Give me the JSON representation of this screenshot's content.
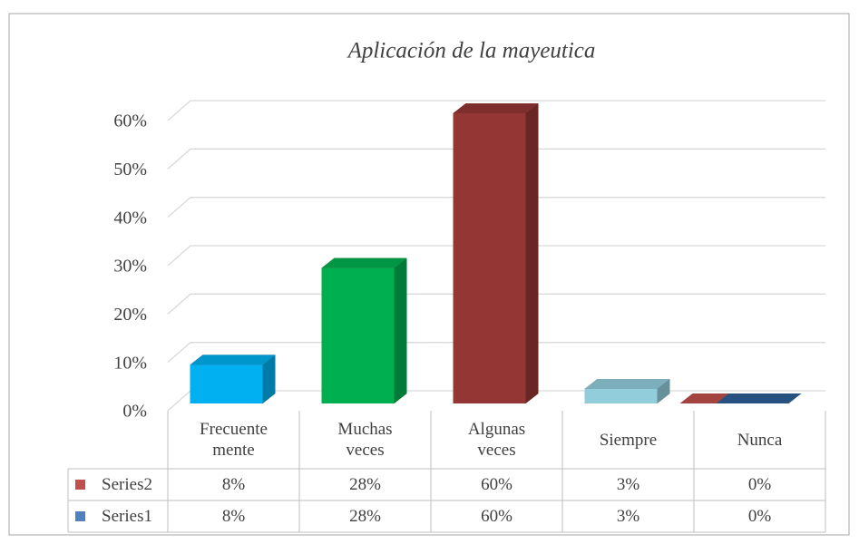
{
  "chart_data": {
    "type": "bar3d",
    "title": "Aplicación de la mayeutica",
    "categories": [
      "Frecuente mente",
      "Muchas veces",
      "Algunas veces",
      "Siempre",
      "Nunca"
    ],
    "series": [
      {
        "name": "Series2",
        "color": "#c0504d",
        "values": [
          8,
          28,
          60,
          3,
          0
        ],
        "value_labels": [
          "8%",
          "28%",
          "60%",
          "3%",
          "0%"
        ]
      },
      {
        "name": "Series1",
        "color": "#4f81bd",
        "values": [
          8,
          28,
          60,
          3,
          0
        ],
        "value_labels": [
          "8%",
          "28%",
          "60%",
          "3%",
          "0%"
        ]
      }
    ],
    "bar_colors": [
      "#00b0f0",
      "#00b050",
      "#943634",
      "#92cddc",
      "#2e5f96"
    ],
    "ylim": [
      0,
      60
    ],
    "yticks": [
      {
        "value": 0,
        "label": "0%"
      },
      {
        "value": 10,
        "label": "10%"
      },
      {
        "value": 20,
        "label": "20%"
      },
      {
        "value": 30,
        "label": "30%"
      },
      {
        "value": 40,
        "label": "40%"
      },
      {
        "value": 50,
        "label": "50%"
      },
      {
        "value": 60,
        "label": "60%"
      }
    ],
    "grid": true
  }
}
